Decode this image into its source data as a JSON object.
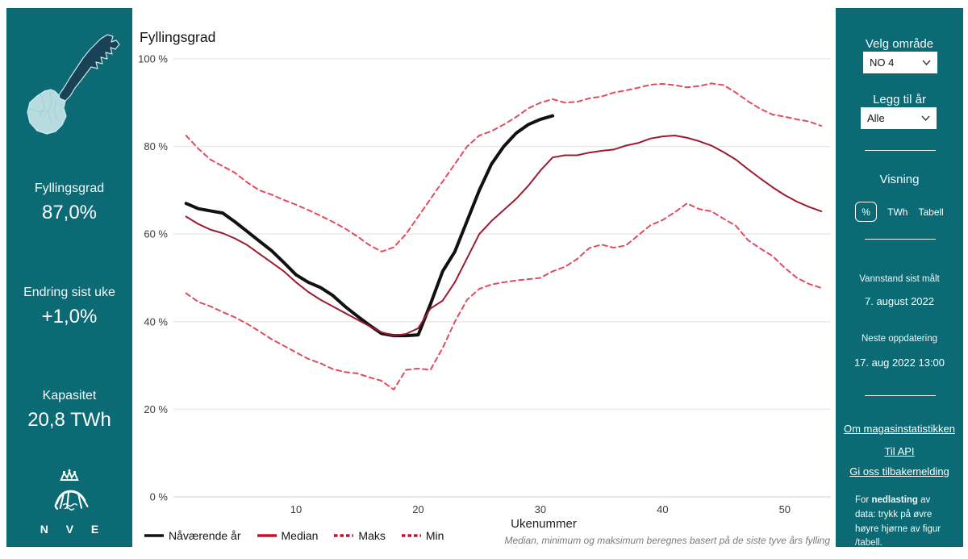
{
  "left_panel": {
    "fyllingsgrad_label": "Fyllingsgrad",
    "fyllingsgrad_value": "87,0%",
    "endring_label": "Endring sist uke",
    "endring_value": "+1,0%",
    "kapasitet_label": "Kapasitet",
    "kapasitet_value": "20,8 TWh",
    "logo_text": "N V E"
  },
  "right_panel": {
    "velg_omrade_label": "Velg område",
    "omrade_value": "NO 4",
    "legg_til_ar_label": "Legg til år",
    "ar_value": "Alle",
    "visning_label": "Visning",
    "visning": {
      "options": [
        "%",
        "TWh",
        "Tabell"
      ],
      "selected": "%"
    },
    "vannstand_label": "Vannstand sist målt",
    "vannstand_value": "7. august 2022",
    "neste_label": "Neste oppdatering",
    "neste_value": "17. aug 2022 13:00",
    "links": [
      "Om magasinstatistikken",
      "Til API",
      "Gi oss tilbakemelding"
    ],
    "footer_pre": "For ",
    "footer_bold": "nedlasting",
    "footer_post": " av data: trykk på øvre høyre hjørne av figur /tabell."
  },
  "colors": {
    "panel_teal": "#0b6a73",
    "map_dark": "#1a4257",
    "map_light": "#b7dce0",
    "current_line": "#111111",
    "median_line": "#9c1b30",
    "extreme_line": "#e14b60",
    "legend_red": "#c8102e"
  },
  "chart_data": {
    "type": "line",
    "title": "Fyllingsgrad",
    "xlabel": "Ukenummer",
    "footnote": "Median, minimum og maksimum beregnes basert på de siste tyve års fylling",
    "xlim": [
      1,
      53
    ],
    "ylim": [
      0,
      100
    ],
    "grid": "horizontal-only",
    "legend_position": "bottom-left",
    "x_ticks": [
      10,
      20,
      30,
      40,
      50
    ],
    "y_ticks": [
      {
        "v": 100,
        "label": "100 %"
      },
      {
        "v": 80,
        "label": "80 %"
      },
      {
        "v": 60,
        "label": "60 %"
      },
      {
        "v": 40,
        "label": "40 %"
      },
      {
        "v": 20,
        "label": "20 %"
      },
      {
        "v": 0,
        "label": "0 %"
      }
    ],
    "series": [
      {
        "key": "current",
        "name": "Nåværende år",
        "style": "solid",
        "width": 4,
        "color": "#111111",
        "legend_color": "#111111",
        "start_week": 1,
        "values": [
          67,
          65.8,
          65.3,
          64.8,
          62.8,
          60.6,
          58.4,
          56.2,
          53.5,
          50.7,
          49,
          47.8,
          46,
          43.5,
          41.3,
          39.2,
          37.3,
          36.8,
          36.8,
          37,
          44,
          51.5,
          56,
          63,
          70,
          76,
          80,
          83,
          85,
          86.2,
          87
        ]
      },
      {
        "key": "median",
        "name": "Median",
        "style": "solid",
        "width": 2,
        "color": "#9c1b30",
        "legend_color": "#c8102e",
        "start_week": 1,
        "values": [
          64,
          62.3,
          61,
          60.2,
          59,
          57.5,
          55.5,
          53.5,
          51.5,
          49,
          46.8,
          45,
          43.5,
          42,
          40.5,
          39,
          37.6,
          36.8,
          37.2,
          38.5,
          43,
          44.8,
          49,
          54.5,
          60,
          63,
          65.5,
          68,
          71,
          74.5,
          77.5,
          78,
          78,
          78.6,
          79,
          79.3,
          80.2,
          80.8,
          81.8,
          82.3,
          82.5,
          82,
          81.2,
          80.2,
          78.7,
          77,
          74.8,
          72.7,
          70.7,
          68.9,
          67.4,
          66.2,
          65.2
        ]
      },
      {
        "key": "maks",
        "name": "Maks",
        "style": "dashed",
        "width": 2,
        "dash": "6 4.5",
        "color": "#e14b60",
        "legend_color": "#c8102e",
        "start_week": 1,
        "values": [
          82.5,
          79.5,
          77,
          75.5,
          74,
          71.8,
          70,
          69,
          67.8,
          66.7,
          65.5,
          64.2,
          62.8,
          61.3,
          59.5,
          57.5,
          56,
          57,
          60,
          64,
          68,
          72,
          76,
          80,
          82.5,
          83.5,
          85,
          86.7,
          88.7,
          90,
          90.8,
          90,
          90.2,
          91,
          91.4,
          92.3,
          92.8,
          93.4,
          94.1,
          94.3,
          94,
          93.5,
          93.8,
          94.4,
          94,
          92.3,
          90.3,
          88.6,
          87.3,
          86.8,
          86.2,
          85.7,
          84.7
        ]
      },
      {
        "key": "min",
        "name": "Min",
        "style": "dashed",
        "width": 2,
        "dash": "6 4.5",
        "color": "#e14b60",
        "legend_color": "#c8102e",
        "start_week": 1,
        "values": [
          46.5,
          44.5,
          43.5,
          42.2,
          41,
          39.5,
          37.8,
          36,
          34.5,
          33,
          31.5,
          30.5,
          29.2,
          28.5,
          28.2,
          27.3,
          26.5,
          24.5,
          29,
          29.3,
          29,
          34,
          40,
          45,
          47.5,
          48.5,
          49,
          49.4,
          49.7,
          50,
          51.5,
          52.5,
          54.3,
          56.8,
          57.6,
          56.9,
          57.4,
          59.7,
          62,
          63.2,
          65,
          67,
          65.7,
          65.2,
          63.5,
          61.9,
          58.6,
          56.7,
          55,
          52.3,
          50,
          48.6,
          47.7
        ]
      }
    ]
  }
}
